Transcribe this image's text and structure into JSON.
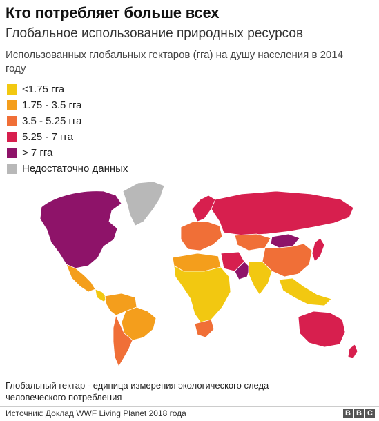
{
  "title": "Кто потребляет больше всех",
  "subtitle": "Глобальное использование природных ресурсов",
  "description": "Использованных глобальных гектаров (гга) на душу населения в 2014 году",
  "legend": [
    {
      "label": "<1.75 гга",
      "color": "#f2c811"
    },
    {
      "label": "1.75 - 3.5 гга",
      "color": "#f49e1c"
    },
    {
      "label": "3.5 - 5.25 гга",
      "color": "#f06f37"
    },
    {
      "label": "5.25 - 7 гга",
      "color": "#d71f4e"
    },
    {
      "label": "> 7 гга",
      "color": "#8e1369"
    },
    {
      "label": "Недостаточно данных",
      "color": "#b8b8b8"
    }
  ],
  "regions": {
    "north_america": "> 7 гга",
    "greenland": "Недостаточно данных",
    "mexico": "1.75 - 3.5 гга",
    "central_america": "<1.75 гга",
    "south_america_north": "1.75 - 3.5 гга",
    "brazil": "1.75 - 3.5 гга",
    "argentina_chile": "3.5 - 5.25 гга",
    "scandinavia": "5.25 - 7 гга",
    "western_europe": "3.5 - 5.25 гга",
    "russia": "5.25 - 7 гга",
    "kazakhstan": "3.5 - 5.25 гга",
    "mongolia": "> 7 гга",
    "china": "3.5 - 5.25 гга",
    "north_africa": "1.75 - 3.5 гга",
    "africa": "<1.75 гга",
    "south_africa": "3.5 - 5.25 гга",
    "middle_east": "5.25 - 7 гга",
    "gulf": "> 7 гга",
    "india": "<1.75 гга",
    "southeast_asia": "<1.75 гга",
    "japan_korea": "5.25 - 7 гга",
    "australia": "5.25 - 7 гга",
    "new_zealand": "5.25 - 7 гга"
  },
  "note": "Глобальный гектар - единица измерения экологического следа человеческого потребления",
  "source": "Источник: Доклад WWF Living Planet 2018 года",
  "logo": [
    "B",
    "B",
    "C"
  ]
}
